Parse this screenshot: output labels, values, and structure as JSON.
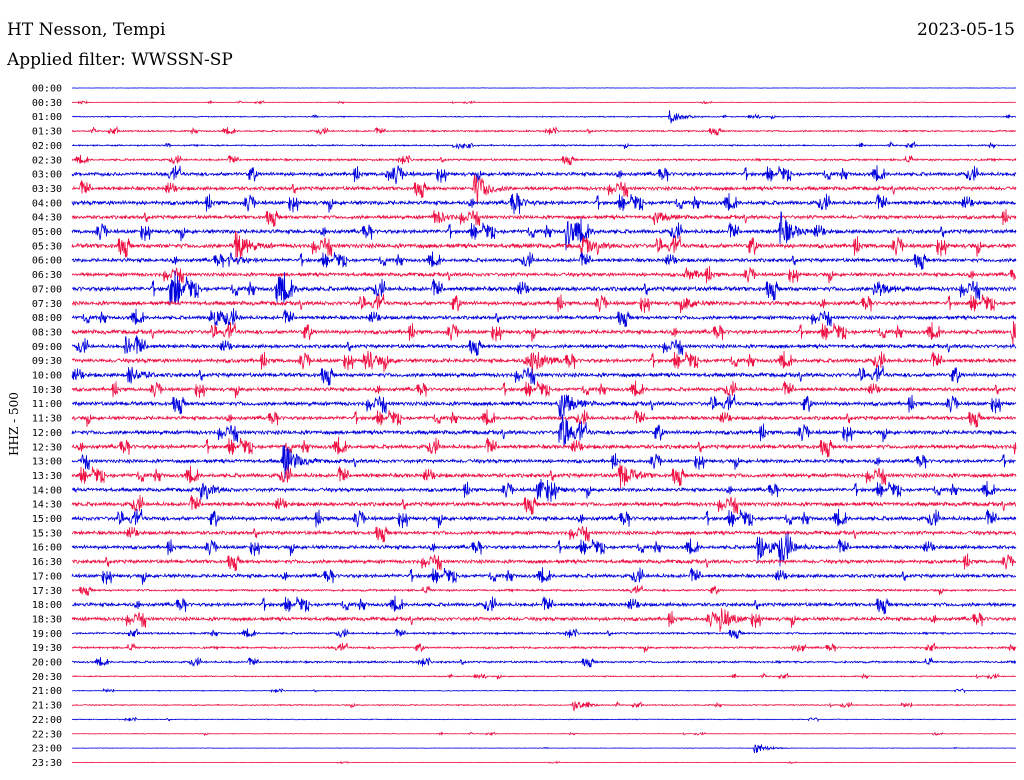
{
  "header": {
    "station": "HT Nesson, Tempi",
    "date": "2023-05-15",
    "filter": "Applied filter: WWSSN-SP"
  },
  "channel_label": "HHZ - 500",
  "colors": {
    "even_trace": "#0000dd",
    "odd_trace": "#ee1144"
  },
  "chart_data": {
    "type": "helicorder",
    "title": "HT Nesson, Tempi",
    "ylabel": "HHZ - 500",
    "row_minutes": 30,
    "row_labels": [
      "00:00",
      "00:30",
      "01:00",
      "01:30",
      "02:00",
      "02:30",
      "03:00",
      "03:30",
      "04:00",
      "04:30",
      "05:00",
      "05:30",
      "06:00",
      "06:30",
      "07:00",
      "07:30",
      "08:00",
      "08:30",
      "09:00",
      "09:30",
      "10:00",
      "10:30",
      "11:00",
      "11:30",
      "12:00",
      "12:30",
      "13:00",
      "13:30",
      "14:00",
      "14:30",
      "15:00",
      "15:30",
      "16:00",
      "16:30",
      "17:00",
      "17:30",
      "18:00",
      "18:30",
      "19:00",
      "19:30",
      "20:00",
      "20:30",
      "21:00",
      "21:30",
      "22:00",
      "22:30",
      "23:00",
      "23:30"
    ],
    "noise_level": [
      0.2,
      0.3,
      0.5,
      0.8,
      0.7,
      1.0,
      1.8,
      1.8,
      2.0,
      1.8,
      2.0,
      2.2,
      1.8,
      1.8,
      2.2,
      2.0,
      1.8,
      2.0,
      1.8,
      2.0,
      2.0,
      1.8,
      2.0,
      1.8,
      2.0,
      2.0,
      1.8,
      2.0,
      1.8,
      2.0,
      2.0,
      1.8,
      1.8,
      1.8,
      1.8,
      1.0,
      1.8,
      1.8,
      1.0,
      1.0,
      1.0,
      0.6,
      0.4,
      0.6,
      0.4,
      0.3,
      0.2,
      0.2
    ],
    "events": [
      {
        "row": 2,
        "minute": 19,
        "amplitude": 8
      },
      {
        "row": 6,
        "minute": 10,
        "amplitude": 6
      },
      {
        "row": 7,
        "minute": 12.8,
        "amplitude": 18
      },
      {
        "row": 8,
        "minute": 14,
        "amplitude": 7
      },
      {
        "row": 9,
        "minute": 11.5,
        "amplitude": 8
      },
      {
        "row": 9,
        "minute": 18.5,
        "amplitude": 7
      },
      {
        "row": 10,
        "minute": 15.7,
        "amplitude": 18
      },
      {
        "row": 10,
        "minute": 22.5,
        "amplitude": 20
      },
      {
        "row": 11,
        "minute": 5.2,
        "amplitude": 18
      },
      {
        "row": 11,
        "minute": 16.2,
        "amplitude": 10
      },
      {
        "row": 12,
        "minute": 5,
        "amplitude": 7
      },
      {
        "row": 13,
        "minute": 19.5,
        "amplitude": 7
      },
      {
        "row": 14,
        "minute": 3.1,
        "amplitude": 16
      },
      {
        "row": 14,
        "minute": 6.5,
        "amplitude": 14
      },
      {
        "row": 14,
        "minute": 25.5,
        "amplitude": 10
      },
      {
        "row": 15,
        "minute": 19.5,
        "amplitude": 6
      },
      {
        "row": 16,
        "minute": 4.4,
        "amplitude": 14
      },
      {
        "row": 17,
        "minute": 29.9,
        "amplitude": 14
      },
      {
        "row": 18,
        "minute": 1.7,
        "amplitude": 10
      },
      {
        "row": 19,
        "minute": 9.3,
        "amplitude": 14
      },
      {
        "row": 19,
        "minute": 14.6,
        "amplitude": 16
      },
      {
        "row": 20,
        "minute": 1.8,
        "amplitude": 10
      },
      {
        "row": 22,
        "minute": 15.5,
        "amplitude": 18
      },
      {
        "row": 24,
        "minute": 15.5,
        "amplitude": 16
      },
      {
        "row": 26,
        "minute": 6.7,
        "amplitude": 22
      },
      {
        "row": 27,
        "minute": 17.4,
        "amplitude": 16
      },
      {
        "row": 28,
        "minute": 4.1,
        "amplitude": 9
      },
      {
        "row": 28,
        "minute": 14.8,
        "amplitude": 14
      },
      {
        "row": 32,
        "minute": 21.8,
        "amplitude": 18
      },
      {
        "row": 32,
        "minute": 22.5,
        "amplitude": 14
      },
      {
        "row": 37,
        "minute": 20.6,
        "amplitude": 14
      },
      {
        "row": 43,
        "minute": 15.9,
        "amplitude": 6
      },
      {
        "row": 46,
        "minute": 21.7,
        "amplitude": 6
      }
    ]
  }
}
